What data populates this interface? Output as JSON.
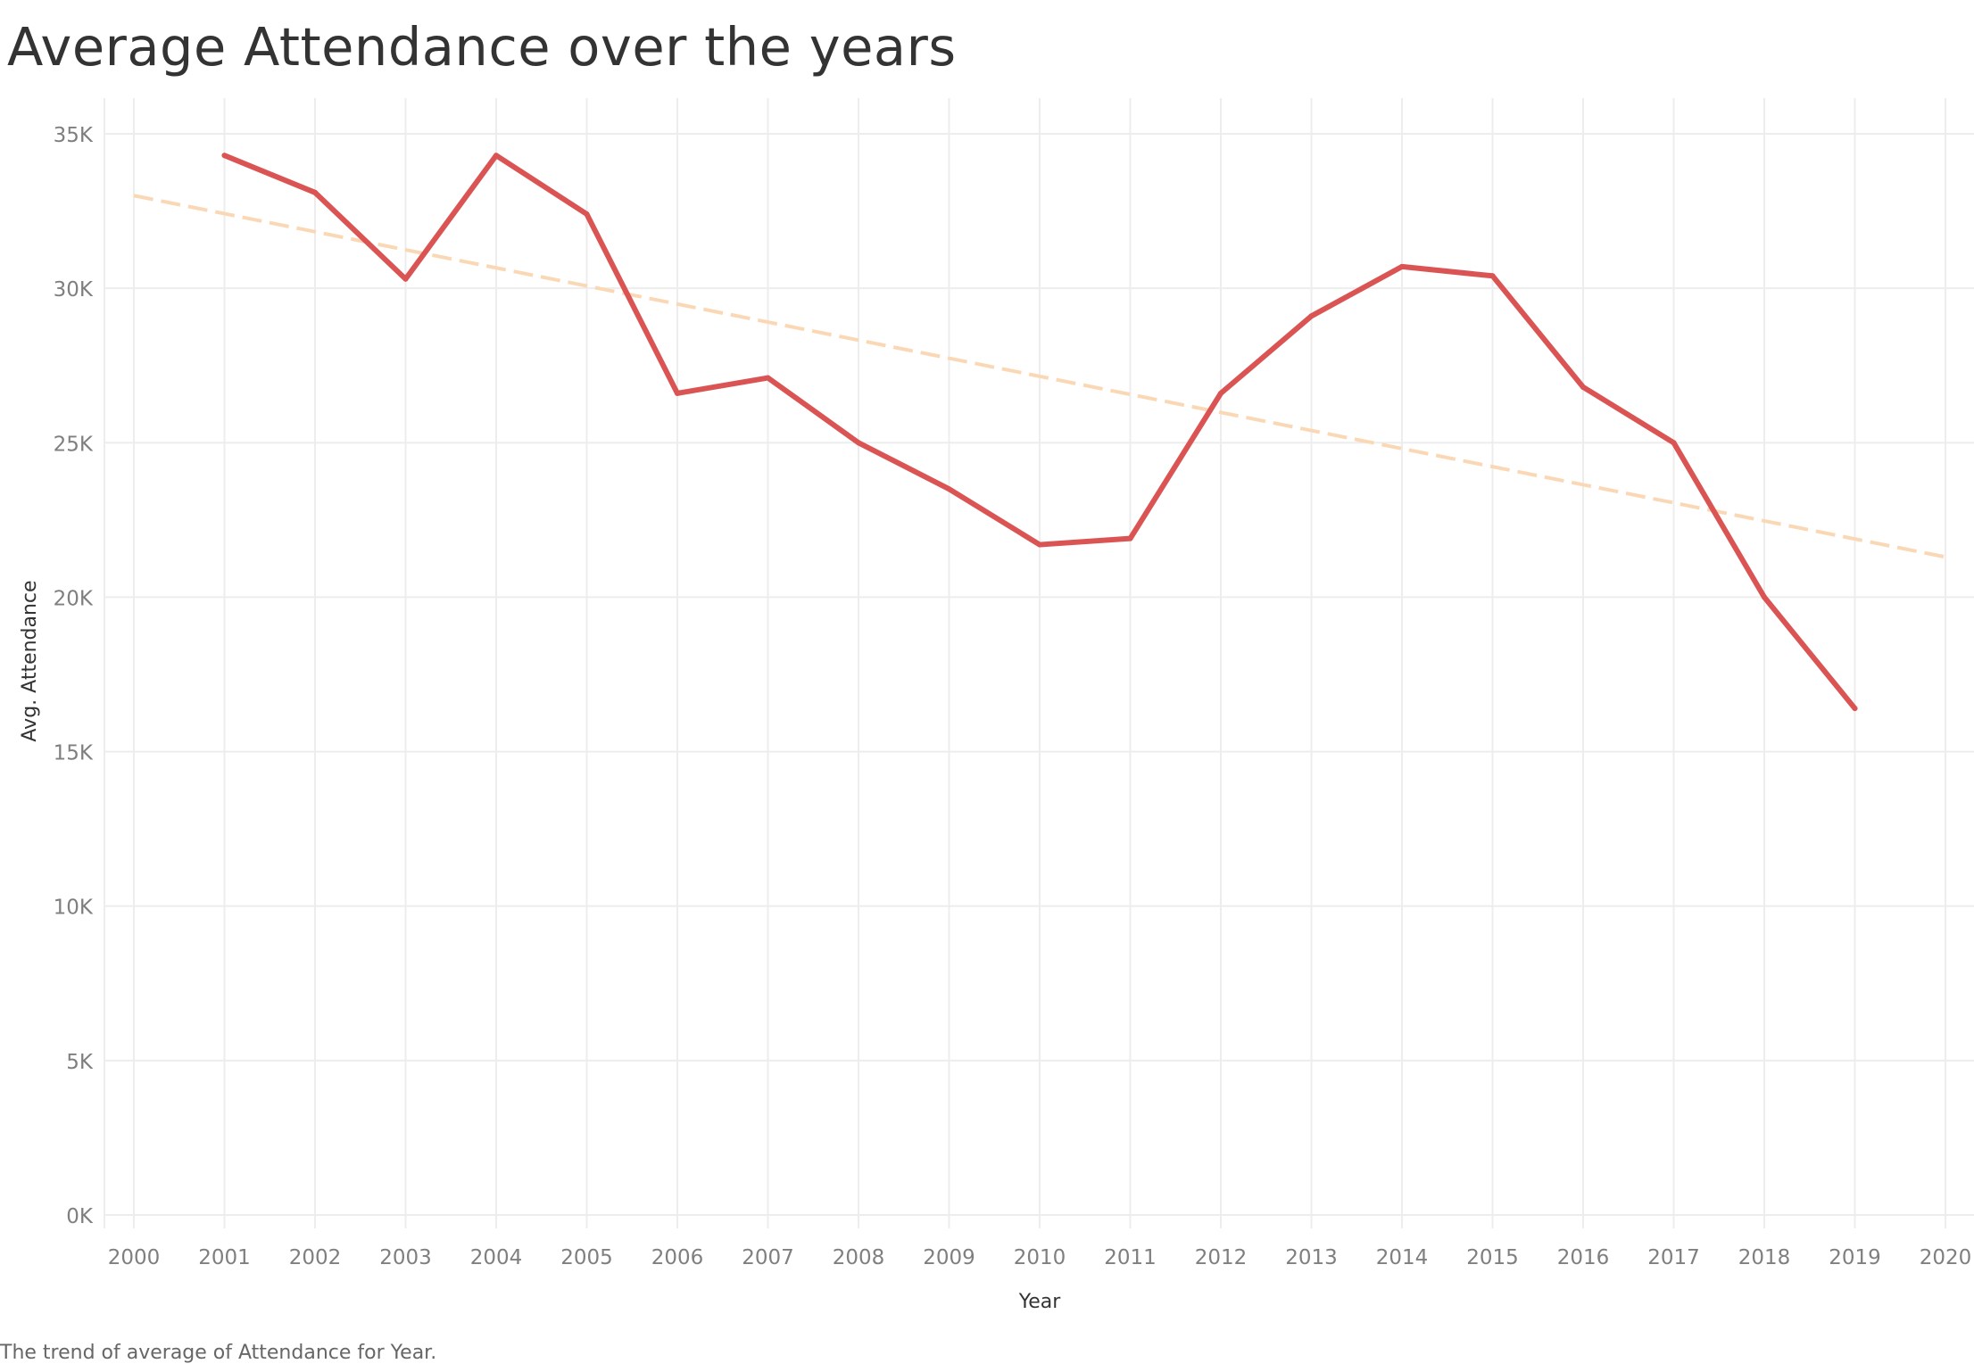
{
  "page": {
    "title": "Average Attendance over the years",
    "caption": "The trend of average of Attendance for Year."
  },
  "colors": {
    "line": "#db5454",
    "trend": "#fbd8b5",
    "grid": "#ededed",
    "tick_text": "#7f7f7f"
  },
  "chart_data": {
    "type": "line",
    "title": "Average Attendance over the years",
    "xlabel": "Year",
    "ylabel": "Avg. Attendance",
    "x_ticks": [
      "2000",
      "2001",
      "2002",
      "2003",
      "2004",
      "2005",
      "2006",
      "2007",
      "2008",
      "2009",
      "2010",
      "2011",
      "2012",
      "2013",
      "2014",
      "2015",
      "2016",
      "2017",
      "2018",
      "2019",
      "2020"
    ],
    "y_ticks": [
      {
        "value": 0,
        "label": "0K"
      },
      {
        "value": 5000,
        "label": "5K"
      },
      {
        "value": 10000,
        "label": "10K"
      },
      {
        "value": 15000,
        "label": "15K"
      },
      {
        "value": 20000,
        "label": "20K"
      },
      {
        "value": 25000,
        "label": "25K"
      },
      {
        "value": 30000,
        "label": "30K"
      },
      {
        "value": 35000,
        "label": "35K"
      }
    ],
    "xlim": [
      2000,
      2020
    ],
    "ylim": [
      0,
      35000
    ],
    "grid": true,
    "series": [
      {
        "x": [
          2001,
          2002,
          2003,
          2004,
          2005,
          2006,
          2007,
          2008,
          2009,
          2010,
          2011,
          2012,
          2013,
          2014,
          2015,
          2016,
          2017,
          2018,
          2019
        ],
        "values": [
          34300,
          33100,
          30300,
          34300,
          32400,
          26600,
          27100,
          25000,
          23500,
          21700,
          21900,
          26600,
          29100,
          30700,
          30400,
          26800,
          25000,
          20000,
          16400
        ]
      }
    ],
    "trend_line": {
      "style": "dashed",
      "x": [
        2000,
        2020
      ],
      "values": [
        33000,
        21300
      ]
    }
  }
}
